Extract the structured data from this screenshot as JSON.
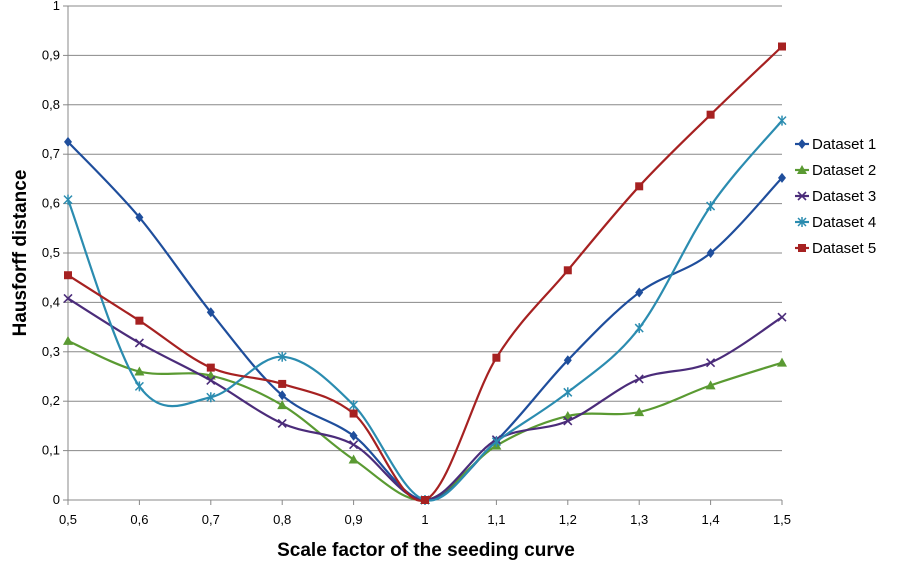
{
  "chart_data": {
    "type": "line",
    "title": "",
    "xlabel": "Scale factor of the seeding curve",
    "ylabel": "Hausforff distance",
    "x": [
      0.5,
      0.6,
      0.7,
      0.8,
      0.9,
      1.0,
      1.1,
      1.2,
      1.3,
      1.4,
      1.5
    ],
    "x_tick_labels": [
      "0,5",
      "0,6",
      "0,7",
      "0,8",
      "0,9",
      "1",
      "1,1",
      "1,2",
      "1,3",
      "1,4",
      "1,5"
    ],
    "y_tick_labels": [
      "0",
      "0,1",
      "0,2",
      "0,3",
      "0,4",
      "0,5",
      "0,6",
      "0,7",
      "0,8",
      "0,9",
      "1"
    ],
    "xlim": [
      0.5,
      1.5
    ],
    "ylim": [
      0,
      1
    ],
    "grid": "horizontal",
    "smooth": true,
    "legend_position": "right",
    "series": [
      {
        "name": "Dataset 1",
        "color": "#1f4e9c",
        "marker": "diamond",
        "values": [
          0.725,
          0.572,
          0.38,
          0.212,
          0.13,
          0.0,
          0.12,
          0.283,
          0.42,
          0.5,
          0.652
        ]
      },
      {
        "name": "Dataset 2",
        "color": "#5a9a32",
        "marker": "triangle",
        "values": [
          0.322,
          0.26,
          0.252,
          0.192,
          0.082,
          0.0,
          0.11,
          0.17,
          0.178,
          0.232,
          0.278
        ]
      },
      {
        "name": "Dataset 3",
        "color": "#4b2c7a",
        "marker": "x",
        "values": [
          0.408,
          0.318,
          0.242,
          0.155,
          0.112,
          0.0,
          0.122,
          0.16,
          0.245,
          0.278,
          0.37
        ]
      },
      {
        "name": "Dataset 4",
        "color": "#2b8cb0",
        "marker": "star",
        "values": [
          0.608,
          0.23,
          0.208,
          0.29,
          0.192,
          0.0,
          0.118,
          0.218,
          0.348,
          0.595,
          0.768
        ]
      },
      {
        "name": "Dataset 5",
        "color": "#a62121",
        "marker": "square",
        "values": [
          0.455,
          0.363,
          0.268,
          0.235,
          0.175,
          0.0,
          0.288,
          0.465,
          0.635,
          0.78,
          0.918
        ]
      }
    ]
  }
}
